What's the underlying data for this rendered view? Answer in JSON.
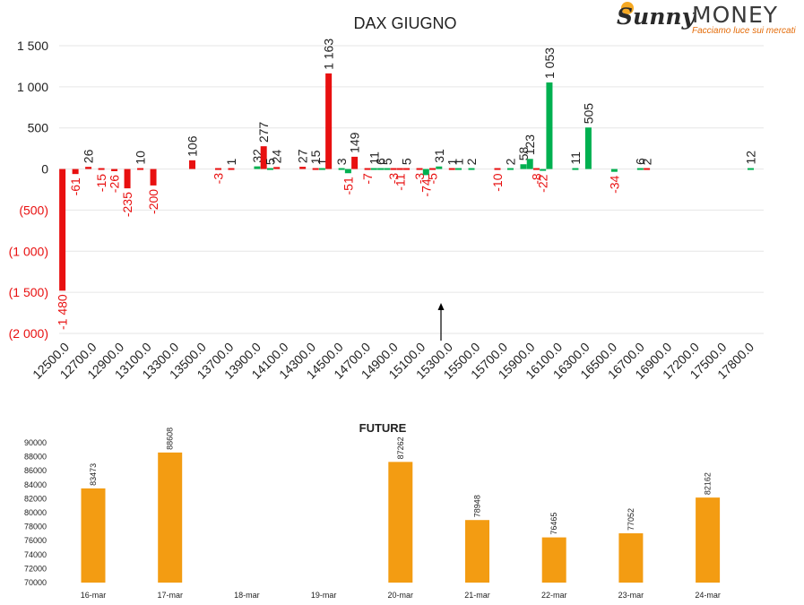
{
  "logo": {
    "brand_part1": "Sunny",
    "brand_part2": "MONEY",
    "tagline": "Facciamo luce sui mercati"
  },
  "colors": {
    "positive": "#00b050",
    "negative": "#e81010",
    "future_bar": "#f39c12",
    "grid": "#e6e6e6",
    "text": "#222222"
  },
  "chart_data": [
    {
      "type": "bar",
      "title": "DAX GIUGNO",
      "xlabel": "",
      "ylabel": "",
      "ylim": [
        -2000,
        1500
      ],
      "y_ticks": [
        1500,
        1000,
        500,
        0,
        -500,
        -1000,
        -1500,
        -2000
      ],
      "y_tick_labels": [
        "1 500",
        "1 000",
        "500",
        "0",
        "(500)",
        "(1 000)",
        "(1 500)",
        "(2 000)"
      ],
      "x_tick_labels": [
        "12500.0",
        "12700.0",
        "12900.0",
        "13100.0",
        "13300.0",
        "13500.0",
        "13700.0",
        "13900.0",
        "14100.0",
        "14300.0",
        "14500.0",
        "14700.0",
        "14900.0",
        "15100.0",
        "15300.0",
        "15500.0",
        "15700.0",
        "15900.0",
        "16100.0",
        "16300.0",
        "16500.0",
        "16700.0",
        "16900.0",
        "17200.0",
        "17500.0",
        "17800.0"
      ],
      "grid": true,
      "annotation": "arrow pointing up near 15300",
      "bars": [
        {
          "strike": 12500,
          "value": -1480,
          "label": "-1 480",
          "color": "negative"
        },
        {
          "strike": 12600,
          "value": -61,
          "label": "-61",
          "color": "negative"
        },
        {
          "strike": 12700,
          "value": 26,
          "label": "26",
          "color": "negative"
        },
        {
          "strike": 12800,
          "value": -15,
          "label": "-15",
          "color": "negative"
        },
        {
          "strike": 12900,
          "value": -26,
          "label": "-26",
          "color": "negative"
        },
        {
          "strike": 13000,
          "value": -235,
          "label": "-235",
          "color": "negative"
        },
        {
          "strike": 13100,
          "value": 10,
          "label": "10",
          "color": "negative"
        },
        {
          "strike": 13200,
          "value": -200,
          "label": "-200",
          "color": "negative"
        },
        {
          "strike": 13500,
          "value": 106,
          "label": "106",
          "color": "negative"
        },
        {
          "strike": 13700,
          "value": -3,
          "label": "-3",
          "color": "negative"
        },
        {
          "strike": 13800,
          "value": 1,
          "label": "1",
          "color": "negative"
        },
        {
          "strike": 14000,
          "value": 32,
          "label": "32",
          "color": "positive"
        },
        {
          "strike": 14050,
          "value": 277,
          "label": "277",
          "color": "negative"
        },
        {
          "strike": 14100,
          "value": 5,
          "label": "5",
          "color": "positive"
        },
        {
          "strike": 14150,
          "value": 24,
          "label": "24",
          "color": "negative"
        },
        {
          "strike": 14350,
          "value": 27,
          "label": "27",
          "color": "negative"
        },
        {
          "strike": 14450,
          "value": 15,
          "label": "15",
          "color": "negative"
        },
        {
          "strike": 14500,
          "value": 1,
          "label": "1",
          "color": "positive"
        },
        {
          "strike": 14550,
          "value": 1163,
          "label": "1 163",
          "color": "negative"
        },
        {
          "strike": 14650,
          "value": 3,
          "label": "3",
          "color": "positive"
        },
        {
          "strike": 14700,
          "value": -51,
          "label": "-51",
          "color": "positive"
        },
        {
          "strike": 14750,
          "value": 149,
          "label": "149",
          "color": "negative"
        },
        {
          "strike": 14850,
          "value": -7,
          "label": "-7",
          "color": "negative"
        },
        {
          "strike": 14900,
          "value": 11,
          "label": "11",
          "color": "positive"
        },
        {
          "strike": 14950,
          "value": 6,
          "label": "6",
          "color": "positive"
        },
        {
          "strike": 15000,
          "value": 5,
          "label": "5",
          "color": "positive"
        },
        {
          "strike": 15050,
          "value": -3,
          "label": "-3",
          "color": "negative"
        },
        {
          "strike": 15100,
          "value": -11,
          "label": "-11",
          "color": "negative"
        },
        {
          "strike": 15150,
          "value": 5,
          "label": "5",
          "color": "negative"
        },
        {
          "strike": 15250,
          "value": -3,
          "label": "-3",
          "color": "negative"
        },
        {
          "strike": 15300,
          "value": -74,
          "label": "-74",
          "color": "positive"
        },
        {
          "strike": 15350,
          "value": -5,
          "label": "-5",
          "color": "negative"
        },
        {
          "strike": 15400,
          "value": 31,
          "label": "31",
          "color": "positive"
        },
        {
          "strike": 15500,
          "value": 1,
          "label": "1",
          "color": "negative"
        },
        {
          "strike": 15550,
          "value": 1,
          "label": "1",
          "color": "positive"
        },
        {
          "strike": 15650,
          "value": 2,
          "label": "2",
          "color": "positive"
        },
        {
          "strike": 15850,
          "value": -10,
          "label": "-10",
          "color": "negative"
        },
        {
          "strike": 15950,
          "value": 2,
          "label": "2",
          "color": "positive"
        },
        {
          "strike": 16050,
          "value": 58,
          "label": "58",
          "color": "positive"
        },
        {
          "strike": 16100,
          "value": 123,
          "label": "123",
          "color": "positive"
        },
        {
          "strike": 16150,
          "value": -8,
          "label": "-8",
          "color": "negative"
        },
        {
          "strike": 16200,
          "value": -22,
          "label": "-22",
          "color": "positive"
        },
        {
          "strike": 16250,
          "value": 1053,
          "label": "1 053",
          "color": "positive"
        },
        {
          "strike": 16450,
          "value": 11,
          "label": "11",
          "color": "positive"
        },
        {
          "strike": 16550,
          "value": 505,
          "label": "505",
          "color": "positive"
        },
        {
          "strike": 16750,
          "value": -34,
          "label": "-34",
          "color": "positive"
        },
        {
          "strike": 16950,
          "value": 6,
          "label": "6",
          "color": "positive"
        },
        {
          "strike": 17000,
          "value": 2,
          "label": "2",
          "color": "negative"
        },
        {
          "strike": 17800,
          "value": 12,
          "label": "12",
          "color": "positive"
        }
      ]
    },
    {
      "type": "bar",
      "title": "FUTURE",
      "xlabel": "",
      "ylabel": "",
      "ylim": [
        70000,
        90000
      ],
      "y_ticks": [
        90000,
        88000,
        86000,
        84000,
        82000,
        80000,
        78000,
        76000,
        74000,
        72000,
        70000
      ],
      "categories": [
        "16-mar",
        "17-mar",
        "18-mar",
        "19-mar",
        "20-mar",
        "21-mar",
        "22-mar",
        "23-mar",
        "24-mar"
      ],
      "values": [
        83473,
        88608,
        null,
        null,
        87262,
        78948,
        76465,
        77052,
        82162
      ],
      "grid": false
    }
  ]
}
